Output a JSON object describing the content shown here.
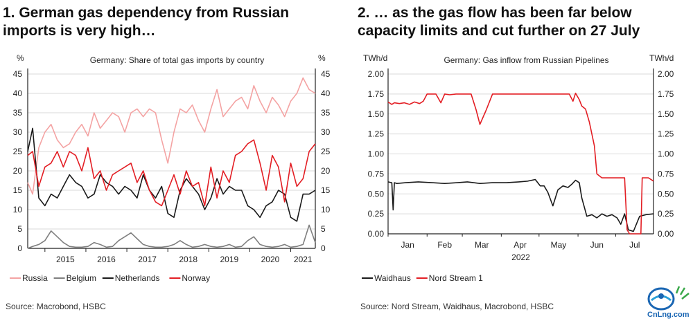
{
  "panel1": {
    "title_line1": "1. German gas dependency from Russian",
    "title_line2": "imports is very high…",
    "source": "Source: Macrobond, HSBC"
  },
  "panel2": {
    "title_line1": "2. … as the gas flow has been far below",
    "title_line2": "capacity limits and cut further on 27 July",
    "source": "Source: Nord Stream, Waidhaus, Macrobond, HSBC"
  },
  "logo": {
    "text": "CnLng.com",
    "color": "#1a66b3"
  },
  "chart_data": [
    {
      "type": "line",
      "title": "Germany: Share of total gas imports by country",
      "ylabel_left": "%",
      "ylabel_right": "%",
      "ylim": [
        0,
        45
      ],
      "yticks": [
        0,
        5,
        10,
        15,
        20,
        25,
        30,
        35,
        40,
        45
      ],
      "xlim": [
        2014.58,
        2021.6
      ],
      "xticks": [
        "2015",
        "2016",
        "2017",
        "2018",
        "2019",
        "2020",
        "2021"
      ],
      "grid": true,
      "legend_position": "bottom",
      "series": [
        {
          "name": "Russia",
          "color": "#f4a3a3",
          "x": [
            2014.58,
            2014.7,
            2014.85,
            2015.0,
            2015.15,
            2015.3,
            2015.45,
            2015.6,
            2015.75,
            2015.9,
            2016.05,
            2016.2,
            2016.35,
            2016.5,
            2016.65,
            2016.8,
            2016.95,
            2017.1,
            2017.25,
            2017.4,
            2017.55,
            2017.7,
            2017.85,
            2018.0,
            2018.15,
            2018.3,
            2018.45,
            2018.6,
            2018.75,
            2018.9,
            2019.05,
            2019.2,
            2019.35,
            2019.5,
            2019.65,
            2019.8,
            2019.95,
            2020.1,
            2020.25,
            2020.4,
            2020.55,
            2020.7,
            2020.85,
            2021.0,
            2021.15,
            2021.3,
            2021.45,
            2021.6
          ],
          "y": [
            17,
            14,
            26,
            30,
            32,
            28,
            26,
            27,
            30,
            32,
            29,
            35,
            31,
            33,
            35,
            34,
            30,
            35,
            36,
            34,
            36,
            35,
            28,
            22,
            30,
            36,
            35,
            37,
            33,
            30,
            36,
            41,
            34,
            36,
            38,
            39,
            36,
            42,
            38,
            35,
            39,
            37,
            34,
            38,
            40,
            44,
            41,
            40
          ]
        },
        {
          "name": "Belgium",
          "color": "#7f7f7f",
          "x": [
            2014.58,
            2014.7,
            2014.85,
            2015.0,
            2015.15,
            2015.3,
            2015.45,
            2015.6,
            2015.75,
            2015.9,
            2016.05,
            2016.2,
            2016.35,
            2016.5,
            2016.65,
            2016.8,
            2016.95,
            2017.1,
            2017.25,
            2017.4,
            2017.55,
            2017.7,
            2017.85,
            2018.0,
            2018.15,
            2018.3,
            2018.45,
            2018.6,
            2018.75,
            2018.9,
            2019.05,
            2019.2,
            2019.35,
            2019.5,
            2019.65,
            2019.8,
            2019.95,
            2020.1,
            2020.25,
            2020.4,
            2020.55,
            2020.7,
            2020.85,
            2021.0,
            2021.15,
            2021.3,
            2021.45,
            2021.6
          ],
          "y": [
            0,
            0.5,
            1,
            2,
            4.5,
            3,
            1.5,
            0.5,
            0.3,
            0.3,
            0.5,
            1.5,
            1,
            0.3,
            0.5,
            2,
            3,
            4,
            2.5,
            1,
            0.5,
            0.3,
            0.3,
            0.5,
            1,
            2,
            1,
            0.3,
            0.5,
            1,
            0.5,
            0.3,
            0.5,
            1,
            0.3,
            0.5,
            2,
            3,
            1,
            0.5,
            0.3,
            0.5,
            1,
            0.3,
            0.5,
            1,
            6,
            1.5
          ]
        },
        {
          "name": "Netherlands",
          "color": "#1a1a1a",
          "x": [
            2014.58,
            2014.7,
            2014.85,
            2015.0,
            2015.15,
            2015.3,
            2015.45,
            2015.6,
            2015.75,
            2015.9,
            2016.05,
            2016.2,
            2016.35,
            2016.5,
            2016.65,
            2016.8,
            2016.95,
            2017.1,
            2017.25,
            2017.4,
            2017.55,
            2017.7,
            2017.85,
            2018.0,
            2018.15,
            2018.3,
            2018.45,
            2018.6,
            2018.75,
            2018.9,
            2019.05,
            2019.2,
            2019.35,
            2019.5,
            2019.65,
            2019.8,
            2019.95,
            2020.1,
            2020.25,
            2020.4,
            2020.55,
            2020.7,
            2020.85,
            2021.0,
            2021.15,
            2021.3,
            2021.45,
            2021.6
          ],
          "y": [
            25,
            31,
            13,
            11,
            14,
            13,
            16,
            19,
            17,
            16,
            13,
            14,
            19,
            17,
            16,
            14,
            16,
            15,
            13,
            19,
            15,
            13,
            16,
            9,
            8,
            15,
            18,
            16,
            14,
            10,
            13,
            18,
            14,
            16,
            15,
            15,
            11,
            10,
            8,
            11,
            12,
            15,
            14,
            8,
            7,
            14,
            14,
            15
          ]
        },
        {
          "name": "Norway",
          "color": "#e31e24",
          "x": [
            2014.58,
            2014.7,
            2014.85,
            2015.0,
            2015.15,
            2015.3,
            2015.45,
            2015.6,
            2015.75,
            2015.9,
            2016.05,
            2016.2,
            2016.35,
            2016.5,
            2016.65,
            2016.8,
            2016.95,
            2017.1,
            2017.25,
            2017.4,
            2017.55,
            2017.7,
            2017.85,
            2018.0,
            2018.15,
            2018.3,
            2018.45,
            2018.6,
            2018.75,
            2018.9,
            2019.05,
            2019.2,
            2019.35,
            2019.5,
            2019.65,
            2019.8,
            2019.95,
            2020.1,
            2020.25,
            2020.4,
            2020.55,
            2020.7,
            2020.85,
            2021.0,
            2021.15,
            2021.3,
            2021.45,
            2021.6
          ],
          "y": [
            24,
            25,
            16,
            21,
            22,
            25,
            21,
            25,
            24,
            20,
            26,
            18,
            20,
            15,
            19,
            20,
            21,
            22,
            17,
            20,
            15,
            12,
            11,
            15,
            19,
            14,
            20,
            16,
            17,
            11,
            21,
            13,
            20,
            17,
            24,
            25,
            27,
            28,
            22,
            15,
            24,
            21,
            12,
            22,
            16,
            18,
            25,
            27
          ]
        }
      ]
    },
    {
      "type": "line",
      "title": "Germany: Gas inflow from Russian Pipelines",
      "ylabel_left": "TWh/d",
      "ylabel_right": "TWh/d",
      "ylim": [
        0,
        2.0
      ],
      "yticks": [
        "0.00",
        "0.25",
        "0.50",
        "0.75",
        "1.00",
        "1.25",
        "1.50",
        "1.75",
        "2.00"
      ],
      "xlim": [
        "2022-01-01",
        "2022-07-31"
      ],
      "xticks": [
        "Jan",
        "Feb",
        "Mar",
        "Apr",
        "May",
        "Jun",
        "Jul"
      ],
      "xlabel": "2022",
      "grid": true,
      "legend_position": "bottom",
      "series": [
        {
          "name": "Waidhaus",
          "color": "#1a1a1a",
          "x": [
            "2022-01-01",
            "2022-01-04",
            "2022-01-05",
            "2022-01-06",
            "2022-01-08",
            "2022-01-15",
            "2022-01-25",
            "2022-02-05",
            "2022-02-15",
            "2022-02-25",
            "2022-03-05",
            "2022-03-15",
            "2022-03-25",
            "2022-04-05",
            "2022-04-15",
            "2022-04-22",
            "2022-04-28",
            "2022-05-02",
            "2022-05-05",
            "2022-05-08",
            "2022-05-12",
            "2022-05-16",
            "2022-05-20",
            "2022-05-24",
            "2022-05-27",
            "2022-05-30",
            "2022-06-02",
            "2022-06-04",
            "2022-06-08",
            "2022-06-12",
            "2022-06-16",
            "2022-06-20",
            "2022-06-24",
            "2022-06-28",
            "2022-07-02",
            "2022-07-05",
            "2022-07-08",
            "2022-07-11",
            "2022-07-15",
            "2022-07-20",
            "2022-07-25",
            "2022-07-31"
          ],
          "y": [
            0.65,
            0.64,
            0.3,
            0.64,
            0.63,
            0.64,
            0.65,
            0.64,
            0.63,
            0.64,
            0.65,
            0.63,
            0.64,
            0.64,
            0.65,
            0.66,
            0.68,
            0.6,
            0.6,
            0.52,
            0.35,
            0.55,
            0.6,
            0.58,
            0.62,
            0.67,
            0.64,
            0.45,
            0.22,
            0.24,
            0.2,
            0.25,
            0.22,
            0.24,
            0.2,
            0.12,
            0.25,
            0.05,
            0.03,
            0.22,
            0.24,
            0.25
          ]
        },
        {
          "name": "Nord Stream 1",
          "color": "#e31e24",
          "x": [
            "2022-01-01",
            "2022-01-04",
            "2022-01-06",
            "2022-01-10",
            "2022-01-14",
            "2022-01-18",
            "2022-01-22",
            "2022-01-26",
            "2022-01-29",
            "2022-02-01",
            "2022-02-08",
            "2022-02-12",
            "2022-02-15",
            "2022-02-19",
            "2022-02-24",
            "2022-03-01",
            "2022-03-08",
            "2022-03-12",
            "2022-03-15",
            "2022-03-20",
            "2022-03-25",
            "2022-04-05",
            "2022-04-15",
            "2022-04-25",
            "2022-05-05",
            "2022-05-15",
            "2022-05-25",
            "2022-05-28",
            "2022-05-30",
            "2022-06-02",
            "2022-06-04",
            "2022-06-07",
            "2022-06-10",
            "2022-06-14",
            "2022-06-16",
            "2022-06-20",
            "2022-06-25",
            "2022-07-01",
            "2022-07-05",
            "2022-07-08",
            "2022-07-10",
            "2022-07-12",
            "2022-07-21",
            "2022-07-22",
            "2022-07-27",
            "2022-07-31"
          ],
          "y": [
            1.65,
            1.62,
            1.64,
            1.63,
            1.64,
            1.62,
            1.65,
            1.63,
            1.66,
            1.75,
            1.75,
            1.64,
            1.75,
            1.74,
            1.75,
            1.75,
            1.75,
            1.55,
            1.37,
            1.55,
            1.75,
            1.75,
            1.75,
            1.75,
            1.75,
            1.75,
            1.75,
            1.66,
            1.76,
            1.68,
            1.6,
            1.56,
            1.4,
            1.1,
            0.75,
            0.7,
            0.7,
            0.7,
            0.7,
            0.7,
            0.05,
            0.0,
            0.0,
            0.7,
            0.7,
            0.66
          ]
        }
      ]
    }
  ]
}
